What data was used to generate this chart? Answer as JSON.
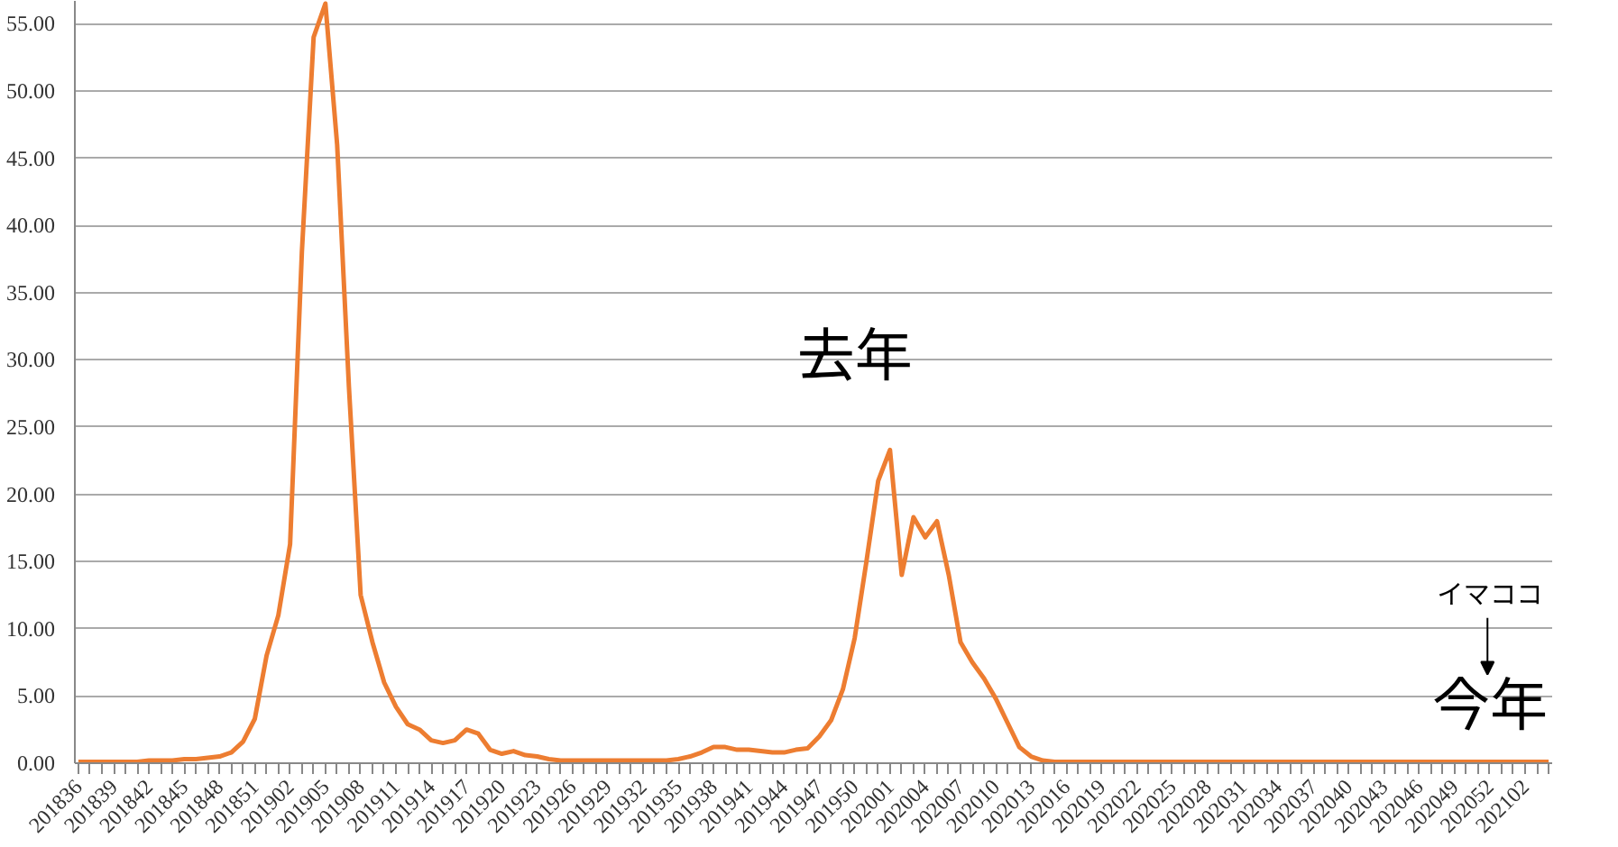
{
  "chart_data": {
    "type": "line",
    "categories": [
      "201836",
      null,
      null,
      "201839",
      null,
      null,
      "201842",
      null,
      null,
      "201845",
      null,
      null,
      "201848",
      null,
      null,
      "201851",
      null,
      null,
      "201902",
      null,
      null,
      "201905",
      null,
      null,
      "201908",
      null,
      null,
      "201911",
      null,
      null,
      "201914",
      null,
      null,
      "201917",
      null,
      null,
      "201920",
      null,
      null,
      "201923",
      null,
      null,
      "201926",
      null,
      null,
      "201929",
      null,
      null,
      "201932",
      null,
      null,
      "201935",
      null,
      null,
      "201938",
      null,
      null,
      "201941",
      null,
      null,
      "201944",
      null,
      null,
      "201947",
      null,
      null,
      "201950",
      null,
      null,
      "202001",
      null,
      null,
      "202004",
      null,
      null,
      "202007",
      null,
      null,
      "202010",
      null,
      null,
      "202013",
      null,
      null,
      "202016",
      null,
      null,
      "202019",
      null,
      null,
      "202022",
      null,
      null,
      "202025",
      null,
      null,
      "202028",
      null,
      null,
      "202031",
      null,
      null,
      "202034",
      null,
      null,
      "202037",
      null,
      null,
      "202040",
      null,
      null,
      "202043",
      null,
      null,
      "202046",
      null,
      null,
      "202049",
      null,
      null,
      "202052",
      null,
      null,
      "202102",
      null,
      null
    ],
    "series": [
      {
        "color": "#ed7d31",
        "values": [
          0.1,
          0.1,
          0.1,
          0.1,
          0.1,
          0.1,
          0.2,
          0.2,
          0.2,
          0.3,
          0.3,
          0.4,
          0.5,
          0.8,
          1.6,
          3.3,
          8.0,
          11.0,
          16.3,
          38.0,
          54.0,
          56.5,
          46.0,
          28.0,
          12.5,
          9.0,
          6.0,
          4.2,
          2.9,
          2.5,
          1.7,
          1.5,
          1.7,
          2.5,
          2.2,
          1.0,
          0.7,
          0.9,
          0.6,
          0.5,
          0.3,
          0.2,
          0.2,
          0.2,
          0.2,
          0.2,
          0.2,
          0.2,
          0.2,
          0.2,
          0.2,
          0.3,
          0.5,
          0.8,
          1.2,
          1.2,
          1.0,
          1.0,
          0.9,
          0.8,
          0.8,
          1.0,
          1.1,
          2.0,
          3.2,
          5.5,
          9.3,
          15.0,
          21.0,
          23.3,
          14.0,
          18.3,
          16.8,
          18.0,
          14.0,
          9.0,
          7.5,
          6.3,
          4.8,
          3.0,
          1.2,
          0.5,
          0.2,
          0.1,
          0.1,
          0.1,
          0.1,
          0.1,
          0.1,
          0.1,
          0.1,
          0.1,
          0.1,
          0.1,
          0.1,
          0.1,
          0.1,
          0.1,
          0.1,
          0.1,
          0.1,
          0.1,
          0.1,
          0.1,
          0.1,
          0.1,
          0.1,
          0.1,
          0.1,
          0.1,
          0.1,
          0.1,
          0.1,
          0.1,
          0.1,
          0.1,
          0.1,
          0.1,
          0.1,
          0.1,
          0.1,
          0.1,
          0.1,
          0.1,
          0.1,
          0.1
        ]
      }
    ],
    "ylim": [
      0,
      56.7
    ],
    "yticks": [
      {
        "value": 0,
        "label": "0.00"
      },
      {
        "value": 5,
        "label": "5.00"
      },
      {
        "value": 10,
        "label": "10.00"
      },
      {
        "value": 15,
        "label": "15.00"
      },
      {
        "value": 20,
        "label": "20.00"
      },
      {
        "value": 25,
        "label": "25.00"
      },
      {
        "value": 30,
        "label": "30.00"
      },
      {
        "value": 35,
        "label": "35.00"
      },
      {
        "value": 40,
        "label": "40.00"
      },
      {
        "value": 45,
        "label": "45.00"
      },
      {
        "value": 50,
        "label": "50.00"
      },
      {
        "value": 55,
        "label": "55.00"
      }
    ],
    "grid": "y",
    "marker": "none",
    "line_style": "solid",
    "annotations": [
      "去年",
      "今年",
      "イマココ"
    ]
  }
}
